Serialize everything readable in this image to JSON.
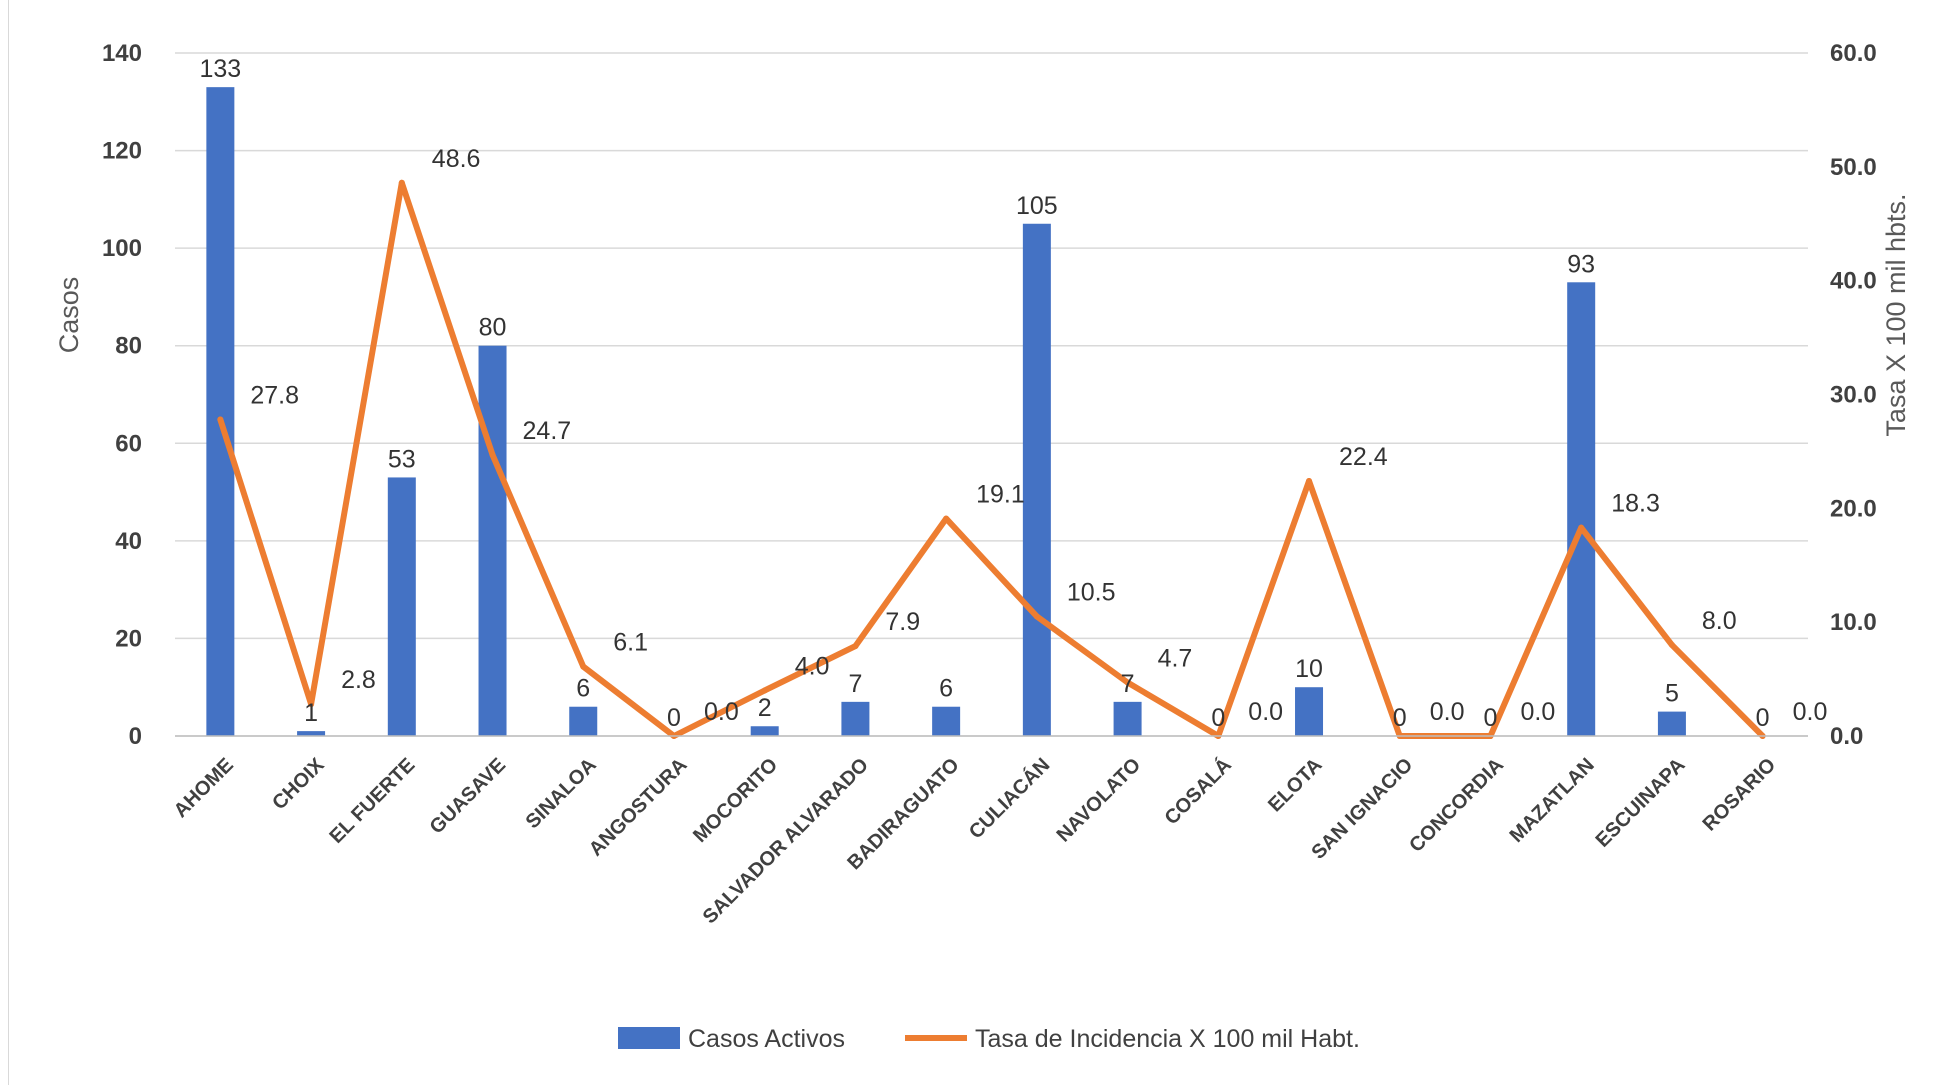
{
  "chart_data": {
    "type": "bar",
    "categories": [
      "AHOME",
      "CHOIX",
      "EL FUERTE",
      "GUASAVE",
      "SINALOA",
      "ANGOSTURA",
      "MOCORITO",
      "SALVADOR ALVARADO",
      "BADIRAGUATO",
      "CULIACÁN",
      "NAVOLATO",
      "COSALÁ",
      "ELOTA",
      "SAN IGNACIO",
      "CONCORDIA",
      "MAZATLAN",
      "ESCUINAPA",
      "ROSARIO"
    ],
    "series": [
      {
        "name": "Casos Activos",
        "type": "bar",
        "axis": "left",
        "color": "#4472C4",
        "values": [
          133,
          1,
          53,
          80,
          6,
          0,
          2,
          7,
          6,
          105,
          7,
          0,
          10,
          0,
          0,
          93,
          5,
          0
        ],
        "labels": [
          "133",
          "1",
          "53",
          "80",
          "6",
          "0",
          "2",
          "7",
          "6",
          "105",
          "7",
          "0",
          "10",
          "0",
          "0",
          "93",
          "5",
          "0"
        ]
      },
      {
        "name": "Tasa de Incidencia X 100 mil Habt.",
        "type": "line",
        "axis": "right",
        "color": "#ED7D31",
        "values": [
          27.8,
          2.8,
          48.6,
          24.7,
          6.1,
          0.0,
          4.0,
          7.9,
          19.1,
          10.5,
          4.7,
          0.0,
          22.4,
          0.0,
          0.0,
          18.3,
          8.0,
          0.0
        ],
        "labels": [
          "27.8",
          "2.8",
          "48.6",
          "24.7",
          "6.1",
          "0.0",
          "4.0",
          "7.9",
          "19.1",
          "10.5",
          "4.7",
          "0.0",
          "22.4",
          "0.0",
          "0.0",
          "18.3",
          "8.0",
          "0.0"
        ]
      }
    ],
    "ylabel": "Casos",
    "y2label": "Tasa X 100 mil hbts.",
    "ylim": [
      0,
      140
    ],
    "y2lim": [
      0,
      60
    ],
    "yticks": [
      "0",
      "20",
      "40",
      "60",
      "80",
      "100",
      "120",
      "140"
    ],
    "y2ticks": [
      "0.0",
      "10.0",
      "20.0",
      "30.0",
      "40.0",
      "50.0",
      "60.0"
    ],
    "grid": true,
    "legend_position": "bottom"
  }
}
